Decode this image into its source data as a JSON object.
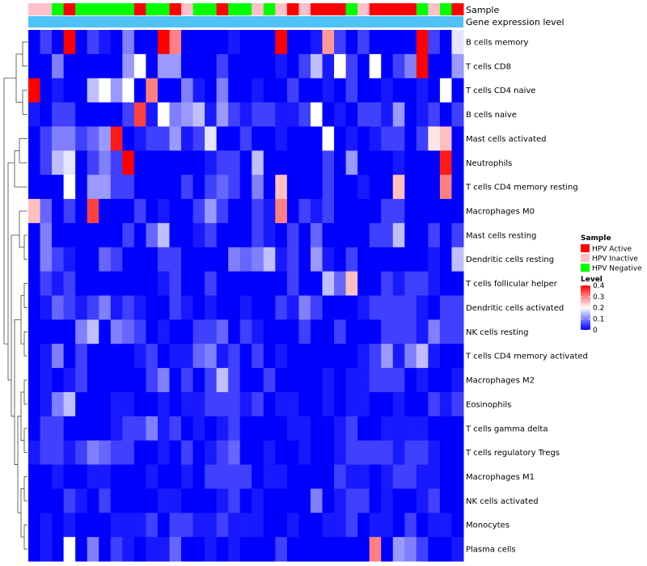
{
  "chart_data": {
    "type": "heatmap",
    "title": "",
    "annotation_labels": {
      "sample": "Sample",
      "expression": "Gene expression level"
    },
    "rows": [
      "B cells memory",
      "T cells CD8",
      "T cells CD4 naive",
      "B cells naive",
      "Mast cells activated",
      "Neutrophils",
      "T cells CD4 memory resting",
      "Macrophages M0",
      "Mast cells resting",
      "Dendritic cells resting",
      "T cells follicular helper",
      "Dendritic cells activated",
      "NK cells resting",
      "T cells CD4 memory activated",
      "Macrophages M2",
      "Eosinophils",
      "T cells gamma delta",
      "T cells regulatory  Tregs",
      "Macrophages M1",
      "NK cells activated",
      "Monocytes",
      "Plasma cells"
    ],
    "samples": [
      "HPV Inactive",
      "HPV Inactive",
      "HPV Negative",
      "HPV Active",
      "HPV Negative",
      "HPV Negative",
      "HPV Negative",
      "HPV Negative",
      "HPV Negative",
      "HPV Active",
      "HPV Negative",
      "HPV Negative",
      "HPV Active",
      "HPV Inactive",
      "HPV Negative",
      "HPV Negative",
      "HPV Active",
      "HPV Negative",
      "HPV Negative",
      "HPV Inactive",
      "HPV Negative",
      "HPV Inactive",
      "HPV Active",
      "HPV Inactive",
      "HPV Active",
      "HPV Active",
      "HPV Active",
      "HPV Negative",
      "HPV Inactive",
      "HPV Active",
      "HPV Active",
      "HPV Active",
      "HPV Active",
      "HPV Negative",
      "HPV Inactive",
      "HPV Negative",
      "HPV Active"
    ],
    "values": [
      [
        0,
        0.05,
        0,
        0.4,
        0,
        0.05,
        0.02,
        0,
        0.1,
        0,
        0,
        0.4,
        0.3,
        0,
        0,
        0,
        0,
        0.02,
        0,
        0,
        0,
        0.4,
        0,
        0,
        0.02,
        0.28,
        0.05,
        0,
        0.05,
        0,
        0,
        0,
        0,
        0.4,
        0.05,
        0,
        0.18
      ],
      [
        0,
        0,
        0.1,
        0,
        0,
        0,
        0,
        0,
        0.12,
        0.2,
        0,
        0.12,
        0.12,
        0,
        0,
        0,
        0.05,
        0,
        0,
        0,
        0,
        0.02,
        0,
        0.05,
        0.15,
        0.02,
        0.2,
        0.05,
        0,
        0.2,
        0,
        0.05,
        0.1,
        0.4,
        0,
        0,
        0.12
      ],
      [
        0.4,
        0,
        0.02,
        0,
        0,
        0.15,
        0.2,
        0.12,
        0.2,
        0,
        0.3,
        0,
        0,
        0.1,
        0.02,
        0,
        0.1,
        0,
        0,
        0.02,
        0,
        0,
        0.05,
        0,
        0,
        0.02,
        0,
        0.05,
        0,
        0,
        0.02,
        0,
        0,
        0.02,
        0,
        0.2,
        0
      ],
      [
        0.02,
        0,
        0.05,
        0.05,
        0,
        0,
        0,
        0,
        0.05,
        0.35,
        0.02,
        0.2,
        0.1,
        0.12,
        0.15,
        0.02,
        0.12,
        0.05,
        0.02,
        0.05,
        0.05,
        0.02,
        0.02,
        0.05,
        0.2,
        0,
        0.02,
        0,
        0.05,
        0.05,
        0.02,
        0.12,
        0,
        0.02,
        0.05,
        0,
        0.05
      ],
      [
        0,
        0.05,
        0.1,
        0.1,
        0.05,
        0.08,
        0.12,
        0.38,
        0,
        0.02,
        0.05,
        0.05,
        0.12,
        0.02,
        0.05,
        0.18,
        0,
        0,
        0.05,
        0,
        0,
        0.02,
        0,
        0,
        0,
        0.2,
        0,
        0.02,
        0,
        0.02,
        0.05,
        0.05,
        0,
        0.05,
        0.22,
        0.25,
        0
      ],
      [
        0,
        0.05,
        0.15,
        0.18,
        0,
        0.05,
        0.1,
        0.05,
        0.4,
        0,
        0,
        0,
        0,
        0,
        0,
        0.02,
        0.05,
        0.05,
        0,
        0.15,
        0,
        0,
        0,
        0,
        0,
        0.05,
        0,
        0.12,
        0,
        0,
        0,
        0.02,
        0,
        0,
        0,
        0.38,
        0
      ],
      [
        0,
        0,
        0,
        0.2,
        0,
        0.12,
        0.12,
        0.05,
        0.05,
        0,
        0,
        0,
        0,
        0.05,
        0,
        0.05,
        0.08,
        0.05,
        0,
        0.1,
        0,
        0.25,
        0,
        0,
        0,
        0.05,
        0,
        0,
        0.02,
        0,
        0,
        0.25,
        0,
        0,
        0,
        0.3,
        0
      ],
      [
        0.25,
        0.08,
        0,
        0.05,
        0,
        0.35,
        0,
        0,
        0,
        0.05,
        0,
        0.02,
        0,
        0,
        0.05,
        0.12,
        0.05,
        0,
        0,
        0.05,
        0.02,
        0.3,
        0,
        0.05,
        0.02,
        0.05,
        0,
        0,
        0,
        0,
        0.05,
        0.05,
        0,
        0,
        0,
        0,
        0
      ],
      [
        0,
        0.1,
        0,
        0,
        0,
        0,
        0,
        0,
        0.05,
        0,
        0.08,
        0.15,
        0,
        0,
        0.02,
        0.05,
        0,
        0,
        0,
        0.05,
        0.02,
        0,
        0.05,
        0,
        0.08,
        0,
        0,
        0,
        0,
        0.05,
        0.05,
        0.15,
        0,
        0,
        0.05,
        0,
        0.05
      ],
      [
        0,
        0.1,
        0.05,
        0.02,
        0,
        0,
        0.08,
        0.05,
        0,
        0,
        0,
        0.05,
        0.05,
        0,
        0,
        0,
        0,
        0.1,
        0.08,
        0.1,
        0.15,
        0.02,
        0.05,
        0,
        0.12,
        0.02,
        0,
        0.05,
        0,
        0,
        0,
        0,
        0,
        0,
        0.02,
        0,
        0.15
      ],
      [
        0,
        0.05,
        0.02,
        0.05,
        0,
        0,
        0,
        0,
        0,
        0,
        0,
        0.02,
        0.05,
        0,
        0,
        0.05,
        0,
        0,
        0,
        0,
        0,
        0,
        0.05,
        0,
        0,
        0.15,
        0.08,
        0.25,
        0,
        0,
        0.05,
        0.02,
        0.05,
        0.05,
        0.02,
        0,
        0
      ],
      [
        0,
        0.02,
        0.08,
        0.05,
        0.02,
        0.05,
        0.1,
        0.02,
        0.05,
        0.02,
        0,
        0,
        0.05,
        0.02,
        0,
        0.02,
        0,
        0,
        0.02,
        0,
        0,
        0.05,
        0.02,
        0.1,
        0.05,
        0,
        0,
        0,
        0.02,
        0.05,
        0.05,
        0.05,
        0.05,
        0.02,
        0,
        0.05,
        0.05
      ],
      [
        0,
        0,
        0,
        0,
        0.1,
        0.15,
        0,
        0.1,
        0.08,
        0.05,
        0,
        0.02,
        0,
        0,
        0.05,
        0.05,
        0.08,
        0,
        0.05,
        0.02,
        0,
        0,
        0,
        0.05,
        0,
        0,
        0.05,
        0,
        0,
        0,
        0.05,
        0.05,
        0.05,
        0.02,
        0.1,
        0.05,
        0.05
      ],
      [
        0,
        0.02,
        0.1,
        0,
        0.05,
        0,
        0,
        0,
        0,
        0.02,
        0.05,
        0,
        0.02,
        0.02,
        0.08,
        0.1,
        0.02,
        0.05,
        0,
        0.05,
        0,
        0.02,
        0,
        0,
        0,
        0,
        0,
        0,
        0.02,
        0.05,
        0.12,
        0.02,
        0.1,
        0.15,
        0.02,
        0,
        0
      ],
      [
        0,
        0.02,
        0,
        0.02,
        0.05,
        0,
        0,
        0,
        0,
        0,
        0.05,
        0.1,
        0,
        0.05,
        0,
        0.05,
        0.15,
        0.05,
        0,
        0,
        0.05,
        0,
        0,
        0,
        0,
        0.02,
        0,
        0.02,
        0.02,
        0.05,
        0.05,
        0.05,
        0,
        0.02,
        0,
        0,
        0.02
      ],
      [
        0,
        0.02,
        0.1,
        0.15,
        0,
        0,
        0,
        0.02,
        0.02,
        0,
        0,
        0.02,
        0,
        0.02,
        0.02,
        0.05,
        0.05,
        0.05,
        0.02,
        0.05,
        0,
        0.02,
        0.02,
        0,
        0,
        0.02,
        0,
        0.02,
        0.02,
        0,
        0,
        0.02,
        0,
        0,
        0.05,
        0.02,
        0.05
      ],
      [
        0,
        0.05,
        0.05,
        0,
        0,
        0,
        0,
        0.02,
        0.05,
        0.05,
        0.1,
        0.02,
        0.05,
        0,
        0.02,
        0,
        0.02,
        0.05,
        0,
        0,
        0,
        0,
        0.02,
        0.02,
        0,
        0,
        0.02,
        0.05,
        0,
        0,
        0.02,
        0.02,
        0.02,
        0.02,
        0,
        0,
        0
      ],
      [
        0.02,
        0.05,
        0.05,
        0.02,
        0.05,
        0.1,
        0.08,
        0.05,
        0.05,
        0,
        0,
        0.02,
        0,
        0.05,
        0,
        0.02,
        0.05,
        0.08,
        0,
        0,
        0.02,
        0,
        0,
        0.02,
        0,
        0,
        0.02,
        0.05,
        0.05,
        0.05,
        0.05,
        0.02,
        0.05,
        0.05,
        0.02,
        0,
        0
      ],
      [
        0,
        0,
        0.02,
        0,
        0,
        0.02,
        0.02,
        0,
        0,
        0,
        0.02,
        0,
        0,
        0.02,
        0,
        0.05,
        0.05,
        0.05,
        0.05,
        0,
        0.02,
        0.02,
        0,
        0,
        0,
        0,
        0.05,
        0.02,
        0.02,
        0,
        0.02,
        0.05,
        0.05,
        0.02,
        0.02,
        0,
        0
      ],
      [
        0,
        0,
        0,
        0.05,
        0.02,
        0,
        0.05,
        0,
        0,
        0,
        0,
        0.02,
        0.02,
        0,
        0,
        0,
        0.02,
        0.05,
        0,
        0.02,
        0,
        0,
        0,
        0,
        0.1,
        0,
        0.02,
        0.05,
        0.05,
        0,
        0.02,
        0,
        0,
        0.02,
        0.05,
        0,
        0
      ],
      [
        0,
        0.02,
        0,
        0.02,
        0,
        0,
        0,
        0.02,
        0.02,
        0.02,
        0.05,
        0,
        0.05,
        0.05,
        0.02,
        0.02,
        0.05,
        0.02,
        0.02,
        0.02,
        0,
        0,
        0.02,
        0,
        0,
        0.02,
        0.02,
        0.05,
        0,
        0.02,
        0.02,
        0,
        0.05,
        0,
        0.02,
        0.02,
        0
      ],
      [
        0,
        0.02,
        0,
        0.2,
        0,
        0.1,
        0,
        0.05,
        0.02,
        0,
        0.02,
        0.02,
        0.08,
        0,
        0,
        0.02,
        0,
        0.02,
        0,
        0,
        0,
        0.05,
        0,
        0,
        0,
        0,
        0,
        0,
        0,
        0.3,
        0,
        0.12,
        0.1,
        0.05,
        0,
        0,
        0.02
      ]
    ],
    "scale": {
      "min": 0,
      "max": 0.4,
      "low_color": "#0000ff",
      "mid_color": "#ffffff",
      "high_color": "#ff0000"
    },
    "legend": {
      "sample_title": "Sample",
      "sample_items": [
        {
          "label": "HPV Active",
          "color": "#ff0000"
        },
        {
          "label": "HPV Inactive",
          "color": "#ffc0cb"
        },
        {
          "label": "HPV Negative",
          "color": "#00ff00"
        }
      ],
      "level_title": "Level",
      "level_ticks": [
        {
          "value": 0.4,
          "label": "0.4"
        },
        {
          "value": 0.3,
          "label": "0.3"
        },
        {
          "value": 0.2,
          "label": "0.2"
        },
        {
          "value": 0.1,
          "label": "0.1"
        },
        {
          "value": 0,
          "label": "0"
        }
      ]
    },
    "expression_bar_color": "#4fc3f7"
  }
}
